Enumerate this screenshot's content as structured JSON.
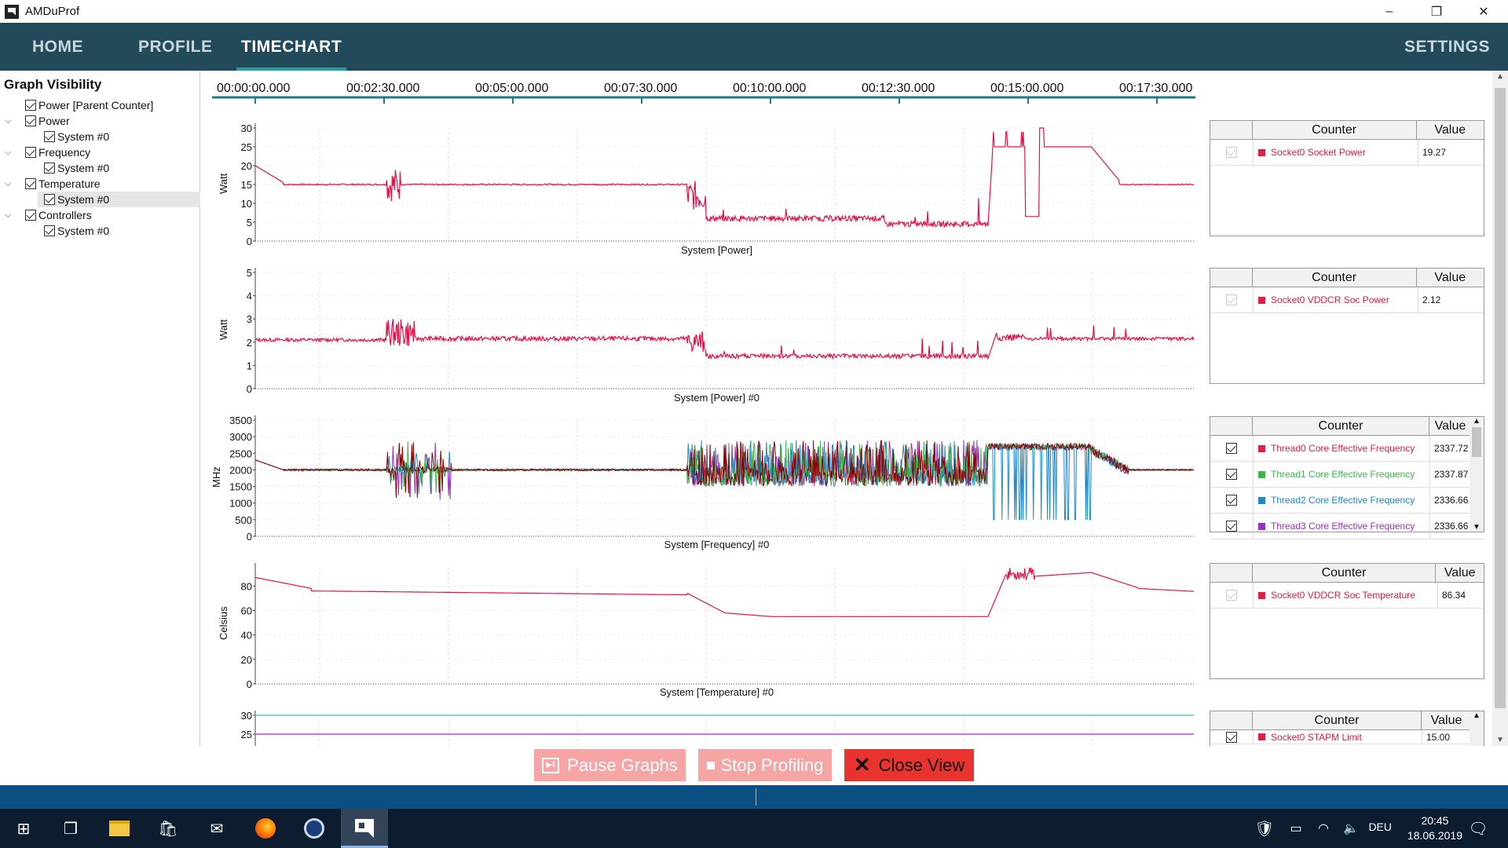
{
  "window": {
    "title": "AMDuProf",
    "minimize": "–",
    "restore": "❐",
    "close": "✕"
  },
  "nav": {
    "home": "HOME",
    "profile": "PROFILE",
    "timechart": "TIMECHART",
    "settings": "SETTINGS"
  },
  "sidebar": {
    "heading": "Graph Visibility",
    "items": [
      {
        "label": "Power [Parent Counter]",
        "level": 0
      },
      {
        "label": "Power",
        "level": 0,
        "expand": true
      },
      {
        "label": "System #0",
        "level": 1
      },
      {
        "label": "Frequency",
        "level": 0,
        "expand": true
      },
      {
        "label": "System #0",
        "level": 1
      },
      {
        "label": "Temperature",
        "level": 0,
        "expand": true
      },
      {
        "label": "System #0",
        "level": 1,
        "selected": true
      },
      {
        "label": "Controllers",
        "level": 0,
        "expand": true
      },
      {
        "label": "System #0",
        "level": 1
      }
    ]
  },
  "timeline": {
    "ticks": [
      "00:00:00.000",
      "00:02:30.000",
      "00:05:00.000",
      "00:07:30.000",
      "00:10:00.000",
      "00:12:30.000",
      "00:15:00.000",
      "00:17:30.000"
    ]
  },
  "charts": [
    {
      "title": "System [Power]",
      "ylabel": "Watt",
      "yticks": [
        "30",
        "25",
        "20",
        "15",
        "10",
        "5",
        "0"
      ]
    },
    {
      "title": "System [Power] #0",
      "ylabel": "Watt",
      "yticks": [
        "5",
        "4",
        "3",
        "2",
        "1",
        "0"
      ]
    },
    {
      "title": "System [Frequency] #0",
      "ylabel": "MHz",
      "yticks": [
        "3500",
        "3000",
        "2500",
        "2000",
        "1500",
        "1000",
        "500",
        "0"
      ]
    },
    {
      "title": "System [Temperature] #0",
      "ylabel": "Celsius",
      "yticks": [
        "80",
        "60",
        "40",
        "20",
        "0"
      ]
    },
    {
      "title": "",
      "ylabel": "",
      "yticks": [
        "30",
        "25"
      ]
    }
  ],
  "colors": {
    "power": "#e8114b",
    "thread0": "#e02040",
    "thread1": "#3cb44b",
    "thread2": "#1e88c8",
    "thread3": "#9b30c0",
    "cyan": "#5bc8c8",
    "purple": "#b050d0"
  },
  "tables": [
    {
      "col_counter": "Counter",
      "col_value": "Value",
      "rows": [
        {
          "name": "Socket0 Socket Power",
          "value": "19.27",
          "color": "#e02040",
          "disabled": true
        }
      ]
    },
    {
      "col_counter": "Counter",
      "col_value": "Value",
      "rows": [
        {
          "name": "Socket0 VDDCR Soc Power",
          "value": "2.12",
          "color": "#e02040",
          "disabled": true
        }
      ]
    },
    {
      "col_counter": "Counter",
      "col_value": "Value",
      "rows": [
        {
          "name": "Thread0 Core Effective Frequency",
          "value": "2337.72",
          "color": "#e02040"
        },
        {
          "name": "Thread1 Core Effective Frequency",
          "value": "2337.87",
          "color": "#3cb44b"
        },
        {
          "name": "Thread2 Core Effective Frequency",
          "value": "2336.66",
          "color": "#1e88c8"
        },
        {
          "name": "Thread3 Core Effective Frequency",
          "value": "2336.66",
          "color": "#9b30c0"
        }
      ]
    },
    {
      "col_counter": "Counter",
      "col_value": "Value",
      "rows": [
        {
          "name": "Socket0 VDDCR Soc Temperature",
          "value": "86.34",
          "color": "#e02040",
          "disabled": true
        }
      ]
    },
    {
      "col_counter": "Counter",
      "col_value": "Value",
      "rows": [
        {
          "name": "Socket0 STAPM Limit",
          "value": "15.00",
          "color": "#e02040"
        }
      ]
    }
  ],
  "actions": {
    "pause": "Pause Graphs",
    "stop": "Stop Profiling",
    "close": "Close View"
  },
  "taskbar": {
    "lang": "DEU",
    "time": "20:45",
    "date": "18.06.2019"
  }
}
